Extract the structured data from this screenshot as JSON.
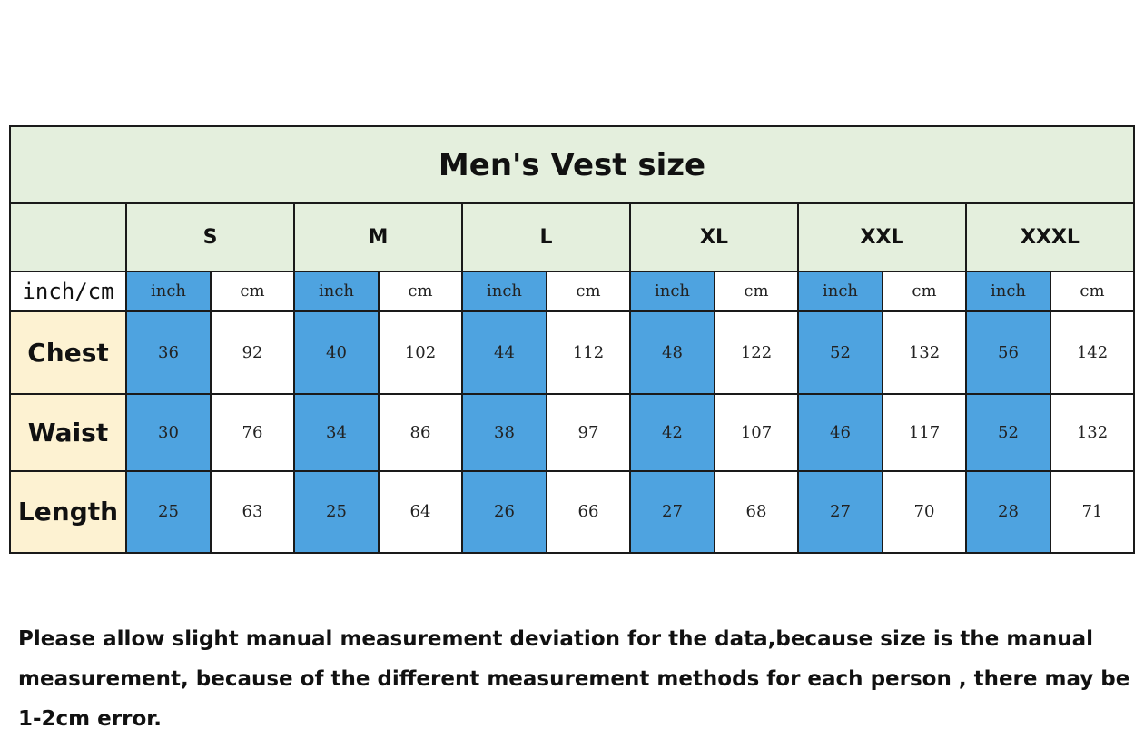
{
  "title": "Men's Vest size",
  "unit_label": "inch/cm",
  "unit_headers": {
    "inch": "inch",
    "cm": "cm"
  },
  "sizes": [
    "S",
    "M",
    "L",
    "XL",
    "XXL",
    "XXXL"
  ],
  "rows": [
    {
      "label": "Chest",
      "values": [
        [
          "36",
          "92"
        ],
        [
          "40",
          "102"
        ],
        [
          "44",
          "112"
        ],
        [
          "48",
          "122"
        ],
        [
          "52",
          "132"
        ],
        [
          "56",
          "142"
        ]
      ]
    },
    {
      "label": "Waist",
      "values": [
        [
          "30",
          "76"
        ],
        [
          "34",
          "86"
        ],
        [
          "38",
          "97"
        ],
        [
          "42",
          "107"
        ],
        [
          "46",
          "117"
        ],
        [
          "52",
          "132"
        ]
      ]
    },
    {
      "label": "Length",
      "values": [
        [
          "25",
          "63"
        ],
        [
          "25",
          "64"
        ],
        [
          "26",
          "66"
        ],
        [
          "27",
          "68"
        ],
        [
          "27",
          "70"
        ],
        [
          "28",
          "71"
        ]
      ]
    }
  ],
  "disclaimer": "Please allow slight manual measurement deviation for the data,because size is the manual measurement, because of the different measurement methods for each person , there may be 1-2cm error.",
  "colors": {
    "inch_cell": "#4ea3e0",
    "header_bg": "#e4efdd",
    "label_bg": "#fdf2d2"
  }
}
